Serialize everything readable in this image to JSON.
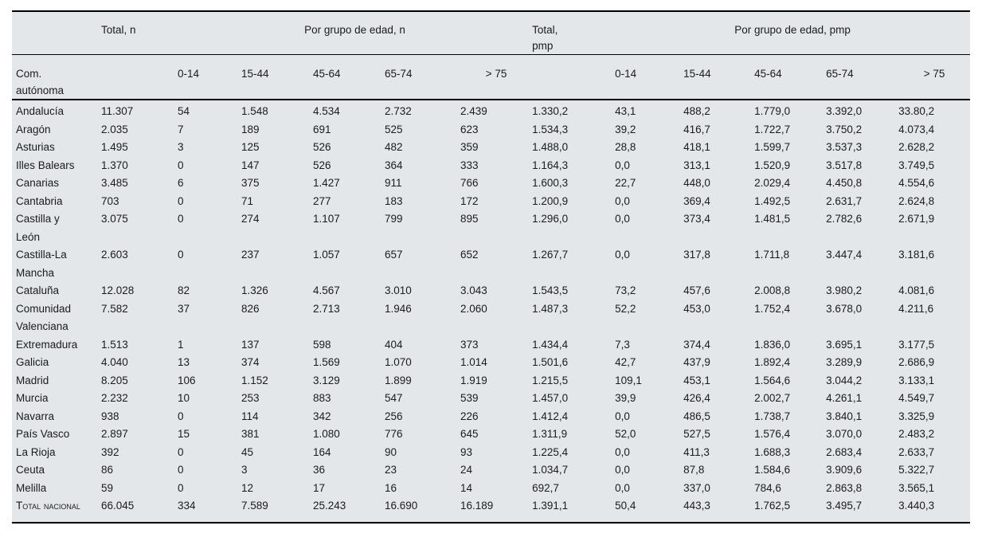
{
  "table": {
    "colors": {
      "background": "#e4e7ea",
      "border": "#000000",
      "text": "#1b1b1b"
    },
    "group_headers": {
      "total_n": "Total, n",
      "por_grupo_n": "Por grupo de edad, n",
      "total_pmp": "Total,\npmp",
      "por_grupo_pmp": "Por grupo de edad, pmp"
    },
    "row_header": "Com.\nautónoma",
    "age_cols": [
      "0-14",
      "15-44",
      "45-64",
      "65-74",
      "> 75"
    ],
    "rows": [
      {
        "label": "Andalucía",
        "values": [
          "11.307",
          "54",
          "1.548",
          "4.534",
          "2.732",
          "2.439",
          "1.330,2",
          "43,1",
          "488,2",
          "1.779,0",
          "3.392,0",
          "33.80,2"
        ]
      },
      {
        "label": "Aragón",
        "values": [
          "2.035",
          "7",
          "189",
          "691",
          "525",
          "623",
          "1.534,3",
          "39,2",
          "416,7",
          "1.722,7",
          "3.750,2",
          "4.073,4"
        ]
      },
      {
        "label": "Asturias",
        "values": [
          "1.495",
          "3",
          "125",
          "526",
          "482",
          "359",
          "1.488,0",
          "28,8",
          "418,1",
          "1.599,7",
          "3.537,3",
          "2.628,2"
        ]
      },
      {
        "label": "Illes Balears",
        "values": [
          "1.370",
          "0",
          "147",
          "526",
          "364",
          "333",
          "1.164,3",
          "0,0",
          "313,1",
          "1.520,9",
          "3.517,8",
          "3.749,5"
        ]
      },
      {
        "label": "Canarias",
        "values": [
          "3.485",
          "6",
          "375",
          "1.427",
          "911",
          "766",
          "1.600,3",
          "22,7",
          "448,0",
          "2.029,4",
          "4.450,8",
          "4.554,6"
        ]
      },
      {
        "label": "Cantabria",
        "values": [
          "703",
          "0",
          "71",
          "277",
          "183",
          "172",
          "1.200,9",
          "0,0",
          "369,4",
          "1.492,5",
          "2.631,7",
          "2.624,8"
        ]
      },
      {
        "label": "Castilla y León",
        "values": [
          "3.075",
          "0",
          "274",
          "1.107",
          "799",
          "895",
          "1.296,0",
          "0,0",
          "373,4",
          "1.481,5",
          "2.782,6",
          "2.671,9"
        ]
      },
      {
        "label": "Castilla-La Mancha",
        "values": [
          "2.603",
          "0",
          "237",
          "1.057",
          "657",
          "652",
          "1.267,7",
          "0,0",
          "317,8",
          "1.711,8",
          "3.447,4",
          "3.181,6"
        ]
      },
      {
        "label": "Cataluña",
        "values": [
          "12.028",
          "82",
          "1.326",
          "4.567",
          "3.010",
          "3.043",
          "1.543,5",
          "73,2",
          "457,6",
          "2.008,8",
          "3.980,2",
          "4.081,6"
        ]
      },
      {
        "label": "Comunidad Valenciana",
        "values": [
          "7.582",
          "37",
          "826",
          "2.713",
          "1.946",
          "2.060",
          "1.487,3",
          "52,2",
          "453,0",
          "1.752,4",
          "3.678,0",
          "4.211,6"
        ]
      },
      {
        "label": "Extremadura",
        "values": [
          "1.513",
          "1",
          "137",
          "598",
          "404",
          "373",
          "1.434,4",
          "7,3",
          "374,4",
          "1.836,0",
          "3.695,1",
          "3.177,5"
        ]
      },
      {
        "label": "Galicia",
        "values": [
          "4.040",
          "13",
          "374",
          "1.569",
          "1.070",
          "1.014",
          "1.501,6",
          "42,7",
          "437,9",
          "1.892,4",
          "3.289,9",
          "2.686,9"
        ]
      },
      {
        "label": "Madrid",
        "values": [
          "8.205",
          "106",
          "1.152",
          "3.129",
          "1.899",
          "1.919",
          "1.215,5",
          "109,1",
          "453,1",
          "1.564,6",
          "3.044,2",
          "3.133,1"
        ]
      },
      {
        "label": "Murcia",
        "values": [
          "2.232",
          "10",
          "253",
          "883",
          "547",
          "539",
          "1.457,0",
          "39,9",
          "426,4",
          "2.002,7",
          "4.261,1",
          "4.549,7"
        ]
      },
      {
        "label": "Navarra",
        "values": [
          "938",
          "0",
          "114",
          "342",
          "256",
          "226",
          "1.412,4",
          "0,0",
          "486,5",
          "1.738,7",
          "3.840,1",
          "3.325,9"
        ]
      },
      {
        "label": "País Vasco",
        "values": [
          "2.897",
          "15",
          "381",
          "1.080",
          "776",
          "645",
          "1.311,9",
          "52,0",
          "527,5",
          "1.576,4",
          "3.070,0",
          "2.483,2"
        ]
      },
      {
        "label": "La Rioja",
        "values": [
          "392",
          "0",
          "45",
          "164",
          "90",
          "93",
          "1.225,4",
          "0,0",
          "411,3",
          "1.688,3",
          "2.683,4",
          "2.633,7"
        ]
      },
      {
        "label": "Ceuta",
        "values": [
          "86",
          "0",
          "3",
          "36",
          "23",
          "24",
          "1.034,7",
          "0,0",
          "87,8",
          "1.584,6",
          "3.909,6",
          "5.322,7"
        ]
      },
      {
        "label": "Melilla",
        "values": [
          "59",
          "0",
          "12",
          "17",
          "16",
          "14",
          "692,7",
          "0,0",
          "337,0",
          "784,6",
          "2.863,8",
          "3.565,1"
        ]
      },
      {
        "label": "Total nacional",
        "small_caps": true,
        "values": [
          "66.045",
          "334",
          "7.589",
          "25.243",
          "16.690",
          "16.189",
          "1.391,1",
          "50,4",
          "443,3",
          "1.762,5",
          "3.495,7",
          "3.440,3"
        ]
      }
    ]
  }
}
